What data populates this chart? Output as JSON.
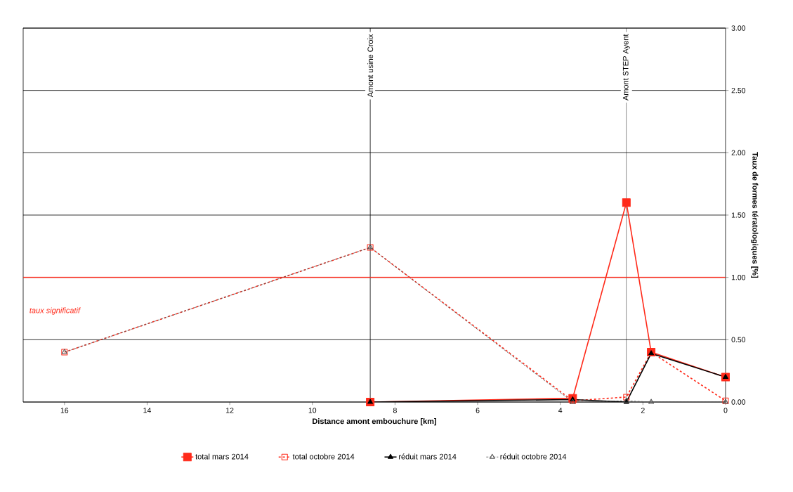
{
  "chart_data": {
    "type": "line",
    "xlabel": "Distance amont embouchure [km]",
    "ylabel": "Taux de formes tératologiques [%]",
    "x": [
      16,
      8.6,
      3.7,
      2.4,
      1.8,
      0
    ],
    "series": [
      {
        "name": "total mars 2014",
        "color": "#ff2a1a",
        "marker": "square*",
        "line_style": "solid",
        "values": [
          null,
          0,
          0.03,
          1.6,
          0.4,
          0.2
        ]
      },
      {
        "name": "total octobre 2014",
        "color": "#ff2a1a",
        "marker": "square",
        "line_style": "dashed",
        "values": [
          0.4,
          1.24,
          0.01,
          0.04,
          0.4,
          0.01
        ]
      },
      {
        "name": "réduit mars 2014",
        "color": "#000000",
        "marker": "triangle*",
        "line_style": "solid",
        "values": [
          null,
          0,
          0.02,
          0,
          0.39,
          0.2
        ]
      },
      {
        "name": "réduit octobre 2014",
        "color": "#505050",
        "marker": "triangle",
        "line_style": "dotted",
        "values": [
          0.4,
          1.24,
          0,
          0.01,
          0,
          0
        ]
      }
    ],
    "xlim": [
      17,
      0
    ],
    "xticks": [
      16,
      14,
      12,
      10,
      8,
      6,
      4,
      2,
      0
    ],
    "ylim": [
      0,
      3
    ],
    "yticks": [
      {
        "value": 0,
        "label": "0.00"
      },
      {
        "value": 0.5,
        "label": "0.50"
      },
      {
        "value": 1,
        "label": "1.00"
      },
      {
        "value": 1.5,
        "label": "1.50"
      },
      {
        "value": 2,
        "label": "2.00"
      },
      {
        "value": 2.5,
        "label": "2.50"
      },
      {
        "value": 3,
        "label": "3.00"
      }
    ],
    "ref_lines": [
      {
        "axis": "x",
        "value": 8.6,
        "label": "Amont usine Croix",
        "color": "#000000"
      },
      {
        "axis": "x",
        "value": 2.4,
        "label": "Amont STEP Ayent",
        "color": "#000000"
      },
      {
        "axis": "y",
        "value": 1,
        "label": "taux significatif",
        "color": "#ff2a1a"
      }
    ],
    "grid": "y",
    "legend": "bottom"
  }
}
